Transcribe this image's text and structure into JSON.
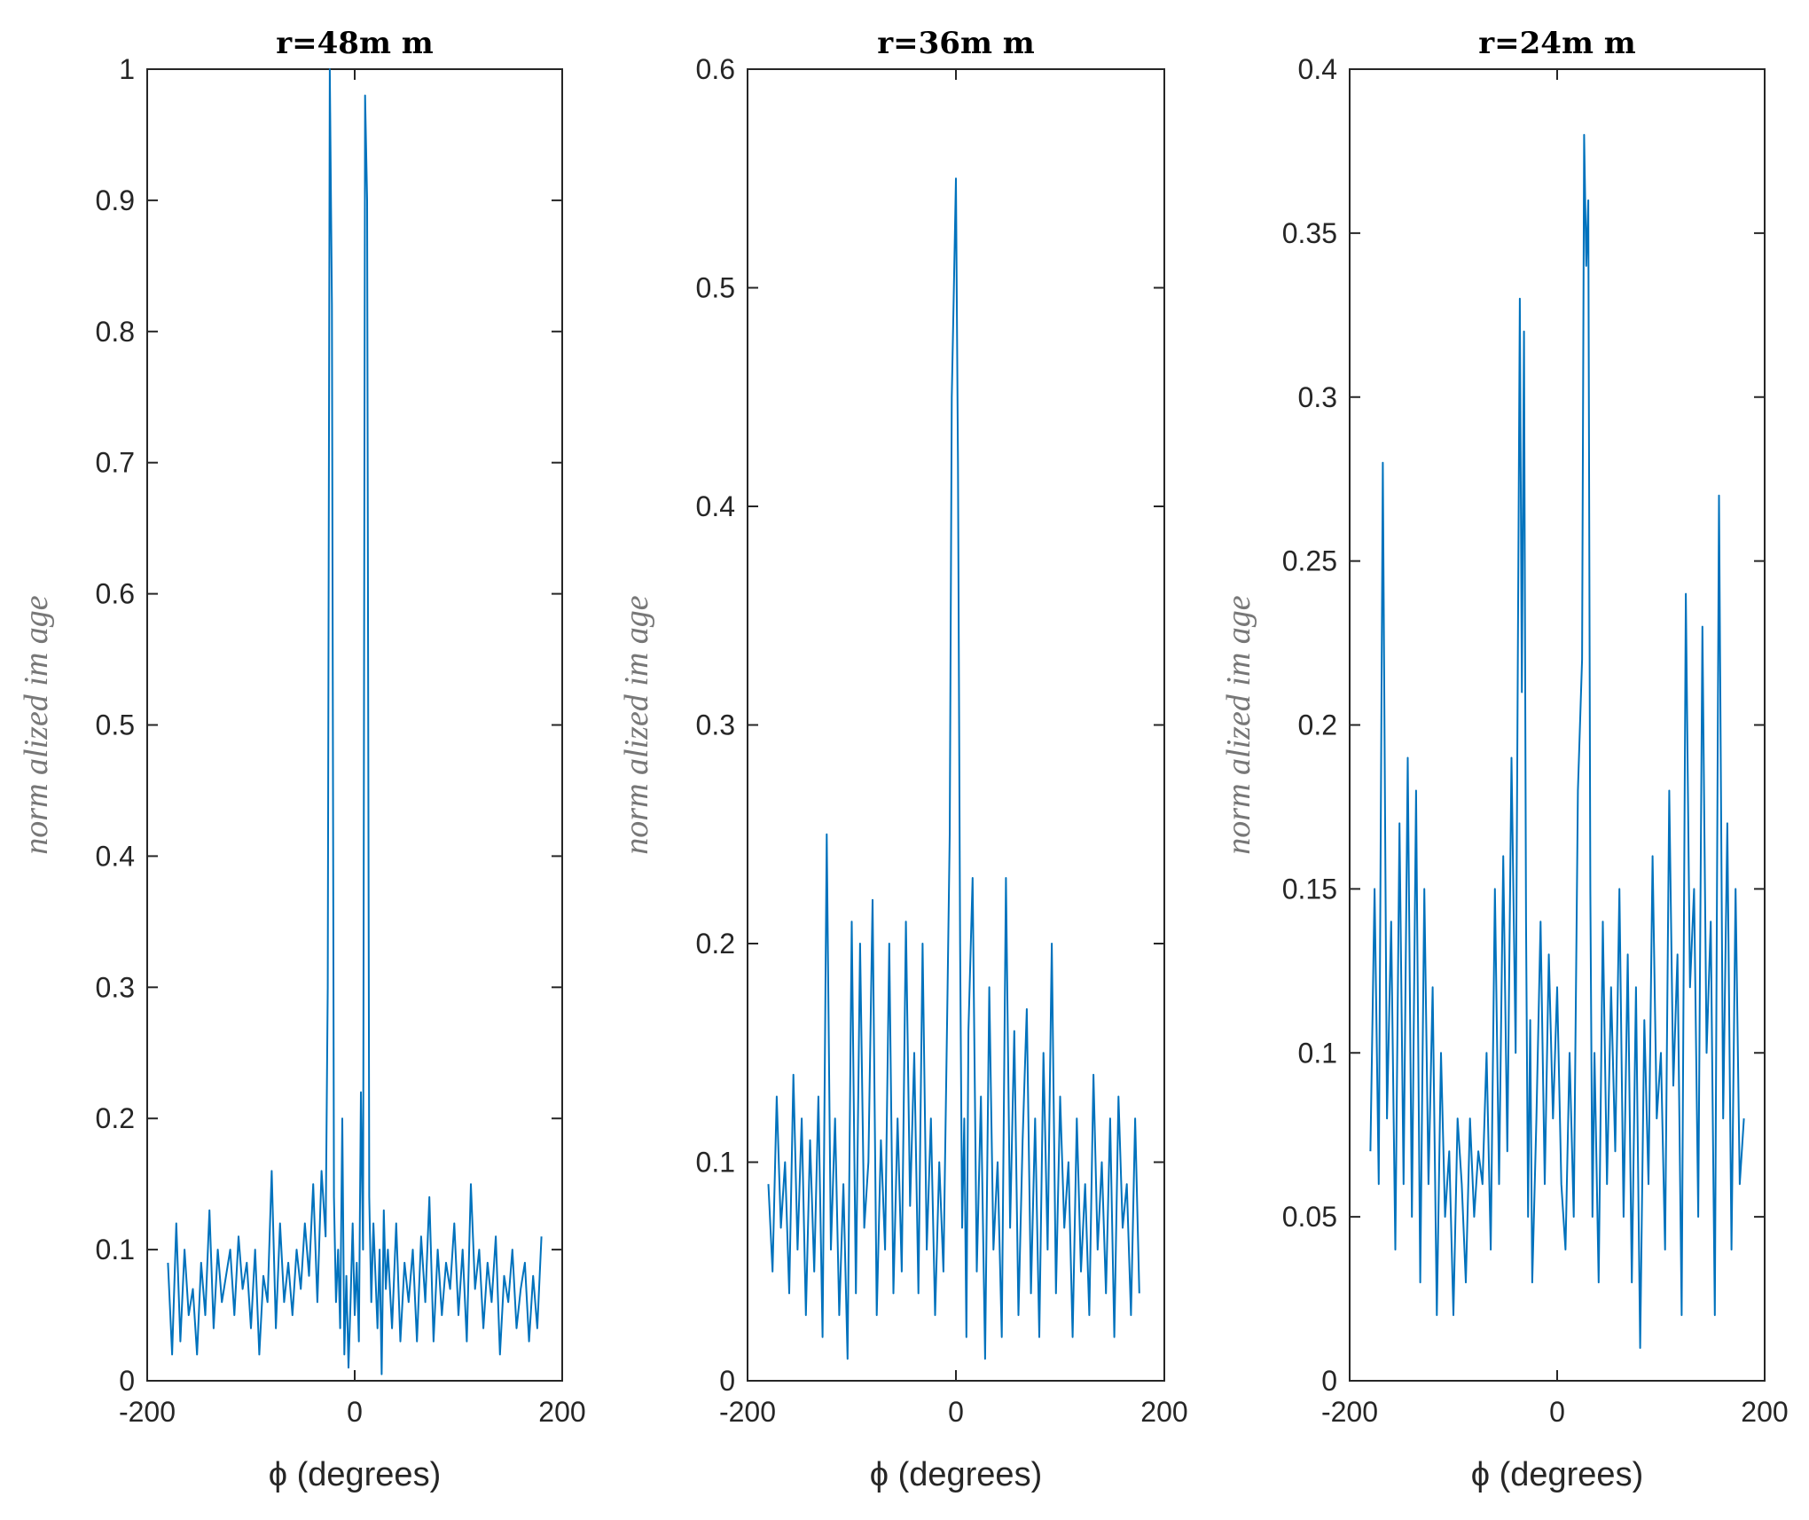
{
  "chart_data": [
    {
      "type": "line",
      "title": "r=48m m",
      "xlabel": "ϕ (degrees)",
      "ylabel": "norm alized im age",
      "xlim": [
        -200,
        200
      ],
      "ylim": [
        0,
        1
      ],
      "xticks": [
        -200,
        0,
        200
      ],
      "xtick_labels": [
        "-200",
        "0",
        "200"
      ],
      "yticks": [
        0,
        0.1,
        0.2,
        0.3,
        0.4,
        0.5,
        0.6,
        0.7,
        0.8,
        0.9,
        1
      ],
      "ytick_labels": [
        "0",
        "0.1",
        "0.2",
        "0.3",
        "0.4",
        "0.5",
        "0.6",
        "0.7",
        "0.8",
        "0.9",
        "1"
      ],
      "series": [
        {
          "name": "normalized image",
          "color": "#0072BD",
          "x": [
            -180,
            -176,
            -172,
            -168,
            -164,
            -160,
            -156,
            -152,
            -148,
            -144,
            -140,
            -136,
            -132,
            -128,
            -124,
            -120,
            -116,
            -112,
            -108,
            -104,
            -100,
            -96,
            -92,
            -88,
            -84,
            -80,
            -76,
            -72,
            -68,
            -64,
            -60,
            -56,
            -52,
            -48,
            -44,
            -40,
            -36,
            -32,
            -28,
            -26,
            -24,
            -22,
            -20,
            -18,
            -16,
            -14,
            -12,
            -10,
            -8,
            -6,
            -4,
            -2,
            0,
            2,
            4,
            6,
            8,
            10,
            12,
            14,
            16,
            18,
            20,
            22,
            24,
            26,
            28,
            30,
            32,
            36,
            40,
            44,
            48,
            52,
            56,
            60,
            64,
            68,
            72,
            76,
            80,
            84,
            88,
            92,
            96,
            100,
            104,
            108,
            112,
            116,
            120,
            124,
            128,
            132,
            136,
            140,
            144,
            148,
            152,
            156,
            160,
            164,
            168,
            172,
            176,
            180
          ],
          "y": [
            0.09,
            0.02,
            0.12,
            0.03,
            0.1,
            0.05,
            0.07,
            0.02,
            0.09,
            0.05,
            0.13,
            0.04,
            0.1,
            0.06,
            0.08,
            0.1,
            0.05,
            0.11,
            0.07,
            0.09,
            0.04,
            0.1,
            0.02,
            0.08,
            0.06,
            0.16,
            0.04,
            0.12,
            0.06,
            0.09,
            0.05,
            0.1,
            0.07,
            0.12,
            0.08,
            0.15,
            0.06,
            0.16,
            0.11,
            0.3,
            1.0,
            0.82,
            0.14,
            0.06,
            0.1,
            0.04,
            0.2,
            0.02,
            0.08,
            0.01,
            0.06,
            0.12,
            0.05,
            0.09,
            0.03,
            0.22,
            0.1,
            0.98,
            0.9,
            0.14,
            0.06,
            0.12,
            0.08,
            0.04,
            0.1,
            0.005,
            0.13,
            0.07,
            0.1,
            0.04,
            0.12,
            0.03,
            0.09,
            0.06,
            0.1,
            0.03,
            0.11,
            0.06,
            0.14,
            0.03,
            0.1,
            0.05,
            0.09,
            0.07,
            0.12,
            0.05,
            0.1,
            0.03,
            0.15,
            0.07,
            0.1,
            0.04,
            0.09,
            0.06,
            0.11,
            0.02,
            0.08,
            0.06,
            0.1,
            0.04,
            0.07,
            0.09,
            0.03,
            0.08,
            0.04,
            0.11
          ]
        }
      ]
    },
    {
      "type": "line",
      "title": "r=36m m",
      "xlabel": "ϕ (degrees)",
      "ylabel": "norm alized im age",
      "xlim": [
        -200,
        200
      ],
      "ylim": [
        0,
        0.6
      ],
      "xticks": [
        -200,
        0,
        200
      ],
      "xtick_labels": [
        "-200",
        "0",
        "200"
      ],
      "yticks": [
        0,
        0.1,
        0.2,
        0.3,
        0.4,
        0.5,
        0.6
      ],
      "ytick_labels": [
        "0",
        "0.1",
        "0.2",
        "0.3",
        "0.4",
        "0.5",
        "0.6"
      ],
      "series": [
        {
          "name": "normalized image",
          "color": "#0072BD",
          "x": [
            -180,
            -176,
            -172,
            -168,
            -164,
            -160,
            -156,
            -152,
            -148,
            -144,
            -140,
            -136,
            -132,
            -128,
            -124,
            -120,
            -116,
            -112,
            -108,
            -104,
            -100,
            -96,
            -92,
            -88,
            -84,
            -80,
            -76,
            -72,
            -68,
            -64,
            -60,
            -56,
            -52,
            -48,
            -44,
            -40,
            -36,
            -32,
            -28,
            -24,
            -20,
            -16,
            -12,
            -8,
            -6,
            -4,
            -2,
            0,
            2,
            4,
            6,
            8,
            10,
            12,
            16,
            20,
            24,
            28,
            32,
            36,
            40,
            44,
            48,
            52,
            56,
            60,
            64,
            68,
            72,
            76,
            80,
            84,
            88,
            92,
            96,
            100,
            104,
            108,
            112,
            116,
            120,
            124,
            128,
            132,
            136,
            140,
            144,
            148,
            152,
            156,
            160,
            164,
            168,
            172,
            176
          ],
          "y": [
            0.09,
            0.05,
            0.13,
            0.07,
            0.1,
            0.04,
            0.14,
            0.06,
            0.12,
            0.03,
            0.11,
            0.05,
            0.13,
            0.02,
            0.25,
            0.06,
            0.12,
            0.03,
            0.09,
            0.01,
            0.21,
            0.04,
            0.2,
            0.07,
            0.1,
            0.22,
            0.03,
            0.11,
            0.06,
            0.2,
            0.04,
            0.12,
            0.05,
            0.21,
            0.08,
            0.15,
            0.04,
            0.2,
            0.06,
            0.12,
            0.03,
            0.1,
            0.05,
            0.18,
            0.25,
            0.45,
            0.5,
            0.55,
            0.42,
            0.2,
            0.07,
            0.12,
            0.02,
            0.16,
            0.23,
            0.05,
            0.13,
            0.01,
            0.18,
            0.06,
            0.1,
            0.02,
            0.23,
            0.07,
            0.16,
            0.03,
            0.11,
            0.17,
            0.04,
            0.12,
            0.02,
            0.15,
            0.06,
            0.2,
            0.04,
            0.13,
            0.07,
            0.1,
            0.02,
            0.12,
            0.05,
            0.09,
            0.03,
            0.14,
            0.06,
            0.1,
            0.04,
            0.12,
            0.02,
            0.13,
            0.07,
            0.09,
            0.03,
            0.12,
            0.04
          ]
        }
      ]
    },
    {
      "type": "line",
      "title": "r=24m m",
      "xlabel": "ϕ (degrees)",
      "ylabel": "norm alized im age",
      "xlim": [
        -200,
        200
      ],
      "ylim": [
        0,
        0.4
      ],
      "xticks": [
        -200,
        0,
        200
      ],
      "xtick_labels": [
        "-200",
        "0",
        "200"
      ],
      "yticks": [
        0,
        0.05,
        0.1,
        0.15,
        0.2,
        0.25,
        0.3,
        0.35,
        0.4
      ],
      "ytick_labels": [
        "0",
        "0.05",
        "0.1",
        "0.15",
        "0.2",
        "0.25",
        "0.3",
        "0.35",
        "0.4"
      ],
      "series": [
        {
          "name": "normalized image",
          "color": "#0072BD",
          "x": [
            -180,
            -176,
            -172,
            -168,
            -164,
            -160,
            -156,
            -152,
            -148,
            -144,
            -140,
            -136,
            -132,
            -128,
            -124,
            -120,
            -116,
            -112,
            -108,
            -104,
            -100,
            -96,
            -92,
            -88,
            -84,
            -80,
            -76,
            -72,
            -68,
            -64,
            -60,
            -56,
            -52,
            -48,
            -44,
            -40,
            -36,
            -34,
            -32,
            -30,
            -28,
            -26,
            -24,
            -20,
            -16,
            -12,
            -8,
            -4,
            0,
            4,
            8,
            12,
            16,
            20,
            24,
            26,
            28,
            30,
            32,
            34,
            36,
            40,
            44,
            48,
            52,
            56,
            60,
            64,
            68,
            72,
            76,
            80,
            84,
            88,
            92,
            96,
            100,
            104,
            108,
            112,
            116,
            120,
            124,
            128,
            132,
            136,
            140,
            144,
            148,
            152,
            156,
            160,
            164,
            168,
            172,
            176,
            180
          ],
          "y": [
            0.07,
            0.15,
            0.06,
            0.28,
            0.08,
            0.14,
            0.04,
            0.17,
            0.06,
            0.19,
            0.05,
            0.18,
            0.03,
            0.15,
            0.06,
            0.12,
            0.02,
            0.1,
            0.05,
            0.07,
            0.02,
            0.08,
            0.06,
            0.03,
            0.08,
            0.05,
            0.07,
            0.06,
            0.1,
            0.04,
            0.15,
            0.06,
            0.16,
            0.07,
            0.19,
            0.1,
            0.33,
            0.21,
            0.32,
            0.14,
            0.05,
            0.11,
            0.03,
            0.08,
            0.14,
            0.06,
            0.13,
            0.08,
            0.12,
            0.06,
            0.04,
            0.1,
            0.05,
            0.18,
            0.22,
            0.38,
            0.34,
            0.36,
            0.15,
            0.05,
            0.1,
            0.03,
            0.14,
            0.06,
            0.12,
            0.07,
            0.15,
            0.05,
            0.13,
            0.03,
            0.12,
            0.01,
            0.11,
            0.06,
            0.16,
            0.08,
            0.1,
            0.04,
            0.18,
            0.09,
            0.13,
            0.02,
            0.24,
            0.12,
            0.15,
            0.05,
            0.23,
            0.1,
            0.14,
            0.02,
            0.27,
            0.08,
            0.17,
            0.04,
            0.15,
            0.06,
            0.08
          ]
        }
      ]
    }
  ]
}
